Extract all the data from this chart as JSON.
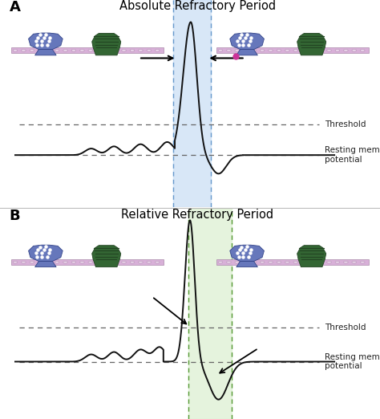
{
  "title_A": "Absolute Refractory Period",
  "title_B": "Relative Refractory Period",
  "label_A": "A",
  "label_B": "B",
  "threshold_label": "Threshold",
  "resting_label": "Resting membrane\npotential",
  "bg_color": "#ffffff",
  "divider_color": "#bbbbbb",
  "shading_blue": "#cce0f5",
  "shading_green": "#d8edcc",
  "dashed_blue": "#6699cc",
  "dashed_green": "#559933",
  "line_color": "#111111",
  "membrane_color": "#d8b0d8",
  "membrane_edge": "#aa88aa",
  "membrane_dot": "#e8d0e8",
  "blue_channel_fill": "#6677bb",
  "blue_channel_edge": "#334488",
  "green_channel_fill": "#336633",
  "green_channel_edge": "#224422",
  "pink_dot_color": "#cc3399"
}
